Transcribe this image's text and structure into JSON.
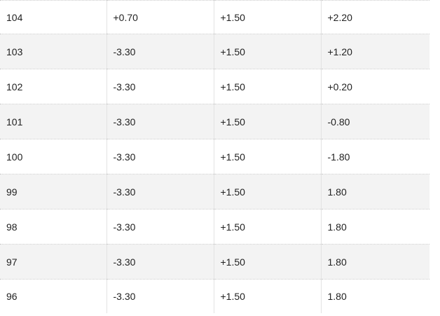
{
  "table": {
    "rows": [
      [
        "104",
        "+0.70",
        "+1.50",
        "+2.20"
      ],
      [
        "103",
        "-3.30",
        "+1.50",
        "+1.20"
      ],
      [
        "102",
        "-3.30",
        "+1.50",
        "+0.20"
      ],
      [
        "101",
        "-3.30",
        "+1.50",
        "-0.80"
      ],
      [
        "100",
        "-3.30",
        "+1.50",
        "-1.80"
      ],
      [
        "99",
        "-3.30",
        "+1.50",
        "1.80"
      ],
      [
        "98",
        "-3.30",
        "+1.50",
        "1.80"
      ],
      [
        "97",
        "-3.30",
        "+1.50",
        "1.80"
      ],
      [
        "96",
        "-3.30",
        "+1.50",
        "1.80"
      ]
    ]
  }
}
